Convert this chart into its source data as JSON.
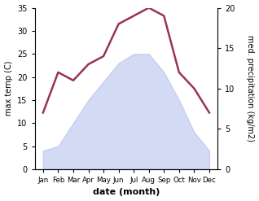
{
  "months": [
    "Jan",
    "Feb",
    "Mar",
    "Apr",
    "May",
    "Jun",
    "Jul",
    "Aug",
    "Sep",
    "Oct",
    "Nov",
    "Dec"
  ],
  "temp_max": [
    4,
    5,
    10,
    15,
    19,
    23,
    25,
    25,
    21,
    15,
    8,
    4
  ],
  "precip": [
    7,
    12,
    11,
    13,
    14,
    18,
    19,
    20,
    19,
    12,
    10,
    7
  ],
  "temp_color_fill": "#b0bcec",
  "precip_line_color": "#993355",
  "temp_ylim": [
    0,
    35
  ],
  "precip_ylim": [
    0,
    20
  ],
  "temp_yticks": [
    0,
    5,
    10,
    15,
    20,
    25,
    30,
    35
  ],
  "precip_yticks": [
    0,
    5,
    10,
    15,
    20
  ],
  "xlabel": "date (month)",
  "ylabel_left": "max temp (C)",
  "ylabel_right": "med. precipitation (kg/m2)",
  "bg_color": "#ffffff",
  "fill_alpha": 0.55,
  "line_width": 1.8
}
